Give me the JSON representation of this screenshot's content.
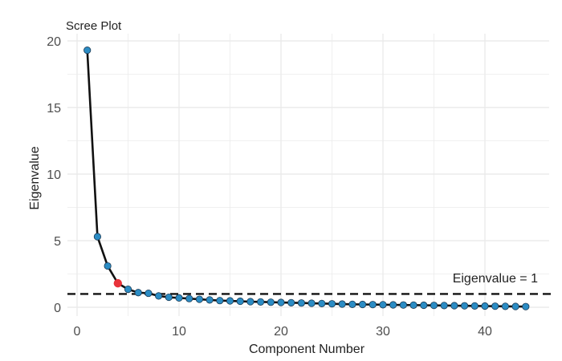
{
  "chart_data": {
    "type": "line",
    "title": "Scree Plot",
    "xlabel": "Component Number",
    "ylabel": "Eigenvalue",
    "xlim": [
      0,
      44
    ],
    "ylim": [
      0,
      20
    ],
    "x_ticks": [
      0,
      10,
      20,
      30,
      40
    ],
    "y_ticks": [
      0,
      5,
      10,
      15,
      20
    ],
    "grid": true,
    "colors": {
      "line": "#111111",
      "point": "#2b8cc4",
      "highlight_point": "#e8333a",
      "reference_line": "#111111",
      "grid": "#ebebeb"
    },
    "series": [
      {
        "x": [
          1,
          2,
          3,
          4,
          5,
          6,
          7,
          8,
          9,
          10,
          11,
          12,
          13,
          14,
          15,
          16,
          17,
          18,
          19,
          20,
          21,
          22,
          23,
          24,
          25,
          26,
          27,
          28,
          29,
          30,
          31,
          32,
          33,
          34,
          35,
          36,
          37,
          38,
          39,
          40,
          41,
          42,
          43,
          44
        ],
        "values": [
          19.3,
          5.3,
          3.1,
          1.8,
          1.35,
          1.1,
          1.05,
          0.85,
          0.75,
          0.7,
          0.65,
          0.6,
          0.55,
          0.5,
          0.48,
          0.45,
          0.42,
          0.4,
          0.38,
          0.36,
          0.34,
          0.32,
          0.3,
          0.28,
          0.26,
          0.24,
          0.22,
          0.21,
          0.2,
          0.19,
          0.18,
          0.17,
          0.16,
          0.15,
          0.14,
          0.13,
          0.12,
          0.11,
          0.1,
          0.09,
          0.08,
          0.07,
          0.06,
          0.05
        ]
      }
    ],
    "highlight": {
      "x": 4,
      "y": 1.8
    },
    "reference_line": {
      "y": 1,
      "style": "dashed",
      "label": "Eigenvalue = 1"
    }
  }
}
